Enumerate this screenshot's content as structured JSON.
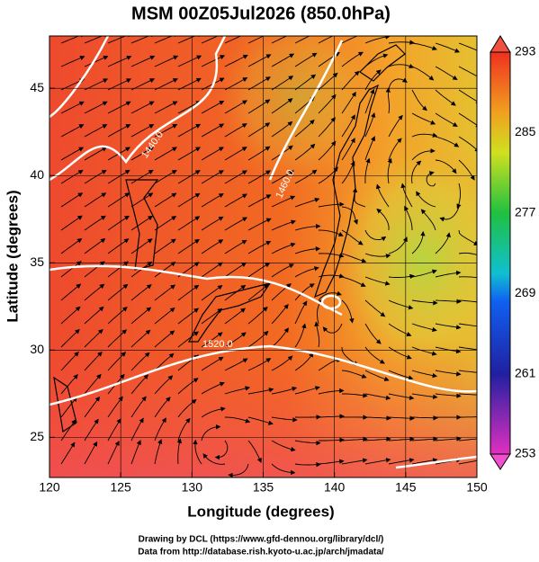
{
  "chart_data": {
    "type": "map",
    "title": "MSM 00Z05Jul2026 (850.0hPa)",
    "x_label": "Longitude (degrees)",
    "y_label": "Latitude  (degrees)",
    "xlim": [
      120,
      150
    ],
    "xticks": [
      120,
      125,
      130,
      135,
      140,
      145,
      150
    ],
    "ylim": [
      22.7,
      48.0
    ],
    "yticks": [
      25,
      30,
      35,
      40,
      45
    ],
    "colorbar": {
      "lim": [
        253,
        293
      ],
      "ticks": [
        253,
        261,
        269,
        277,
        285,
        293
      ]
    },
    "contour_labels": [
      "1440.0",
      "1460.0",
      "1520.0"
    ],
    "credits": [
      "Drawing by DCL (https://www.gfd-dennou.org/library/dcl/)",
      "Data from http://database.rish.kyoto-u.ac.jp/arch/jmadata/"
    ]
  }
}
